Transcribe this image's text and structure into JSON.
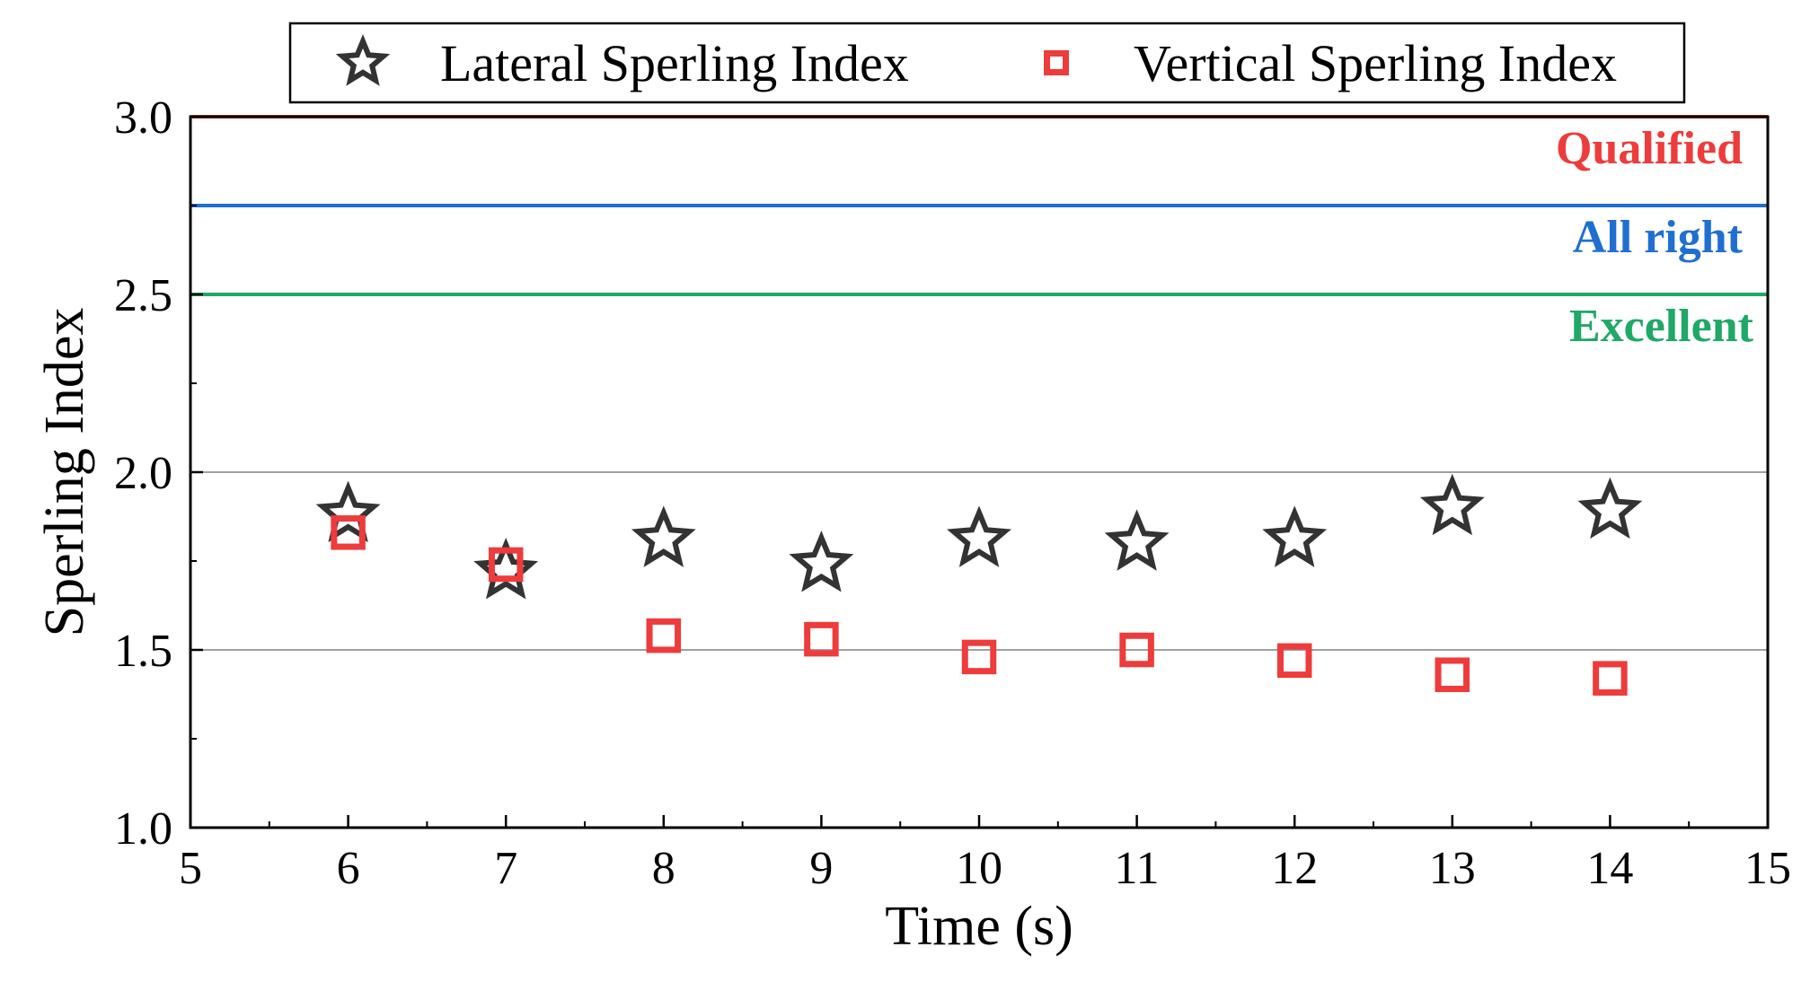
{
  "chart_data": {
    "type": "scatter",
    "title": "",
    "xlabel": "Time (s)",
    "ylabel": "Sperling Index",
    "xlim": [
      5,
      15
    ],
    "ylim": [
      1.0,
      3.0
    ],
    "x_ticks": [
      5,
      6,
      7,
      8,
      9,
      10,
      11,
      12,
      13,
      14,
      15
    ],
    "y_ticks": [
      1.0,
      1.5,
      2.0,
      2.5,
      3.0
    ],
    "y_tick_labels": [
      "1.0",
      "1.5",
      "2.0",
      "2.5",
      "3.0"
    ],
    "gridlines_y": [
      1.5,
      2.0
    ],
    "legend_position": "top",
    "series": [
      {
        "name": "Lateral Sperling Index",
        "marker": "star",
        "color": "#333333",
        "x": [
          6,
          7,
          8,
          9,
          10,
          11,
          12,
          13,
          14
        ],
        "y": [
          1.88,
          1.72,
          1.81,
          1.74,
          1.81,
          1.8,
          1.81,
          1.9,
          1.89
        ]
      },
      {
        "name": "Vertical Sperling Index",
        "marker": "square",
        "color": "#ee3b3b",
        "x": [
          6,
          7,
          8,
          9,
          10,
          11,
          12,
          13,
          14
        ],
        "y": [
          1.83,
          1.74,
          1.54,
          1.53,
          1.48,
          1.5,
          1.47,
          1.43,
          1.42
        ]
      }
    ],
    "reference_lines": [
      {
        "y": 3.0,
        "label": "Qualified",
        "color": "#ee3b3b"
      },
      {
        "y": 2.75,
        "label": "All right",
        "color": "#1f6fd1"
      },
      {
        "y": 2.5,
        "label": "Excellent",
        "color": "#1fa866"
      }
    ]
  }
}
